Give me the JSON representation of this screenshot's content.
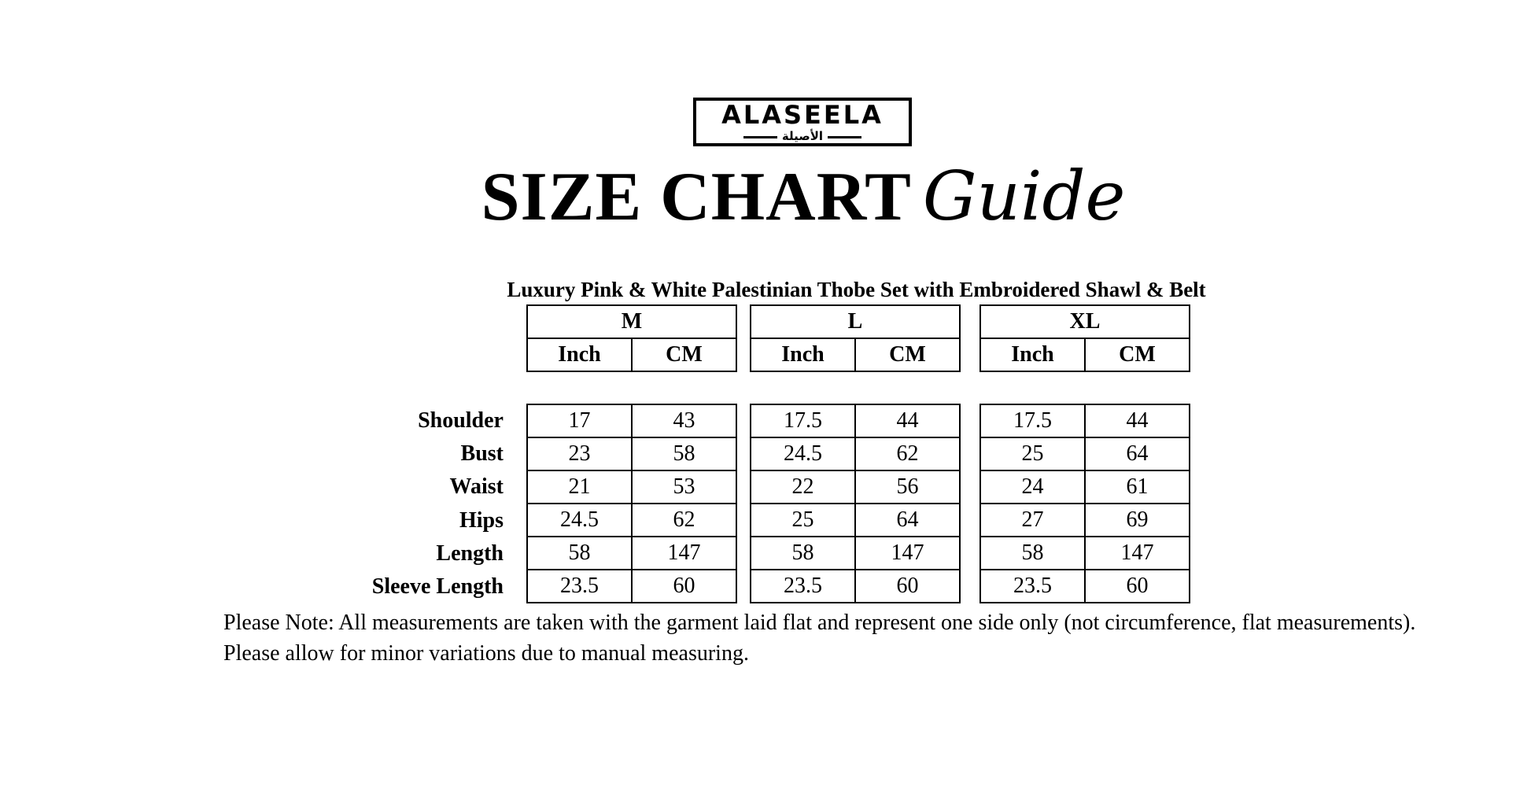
{
  "logo": {
    "text_en": "ALASEELA",
    "text_ar": "الأصيلة"
  },
  "title": "SIZE CHART",
  "title_script": "Guide",
  "subtitle": "Luxury Pink & White Palestinian Thobe Set with Embroidered Shawl & Belt",
  "units": [
    "Inch",
    "CM"
  ],
  "measurements": [
    "Shoulder",
    "Bust",
    "Waist",
    "Hips",
    "Length",
    "Sleeve Length"
  ],
  "sizes": [
    {
      "name": "M",
      "rows": [
        [
          "17",
          "43"
        ],
        [
          "23",
          "58"
        ],
        [
          "21",
          "53"
        ],
        [
          "24.5",
          "62"
        ],
        [
          "58",
          "147"
        ],
        [
          "23.5",
          "60"
        ]
      ]
    },
    {
      "name": "L",
      "rows": [
        [
          "17.5",
          "44"
        ],
        [
          "24.5",
          "62"
        ],
        [
          "22",
          "56"
        ],
        [
          "25",
          "64"
        ],
        [
          "58",
          "147"
        ],
        [
          "23.5",
          "60"
        ]
      ]
    },
    {
      "name": "XL",
      "rows": [
        [
          "17.5",
          "44"
        ],
        [
          "25",
          "64"
        ],
        [
          "24",
          "61"
        ],
        [
          "27",
          "69"
        ],
        [
          "58",
          "147"
        ],
        [
          "23.5",
          "60"
        ]
      ]
    }
  ],
  "note": "Please Note: All measurements are taken with the garment laid flat and represent one side only (not circumference, flat measurements). Please allow for minor variations due to manual measuring."
}
